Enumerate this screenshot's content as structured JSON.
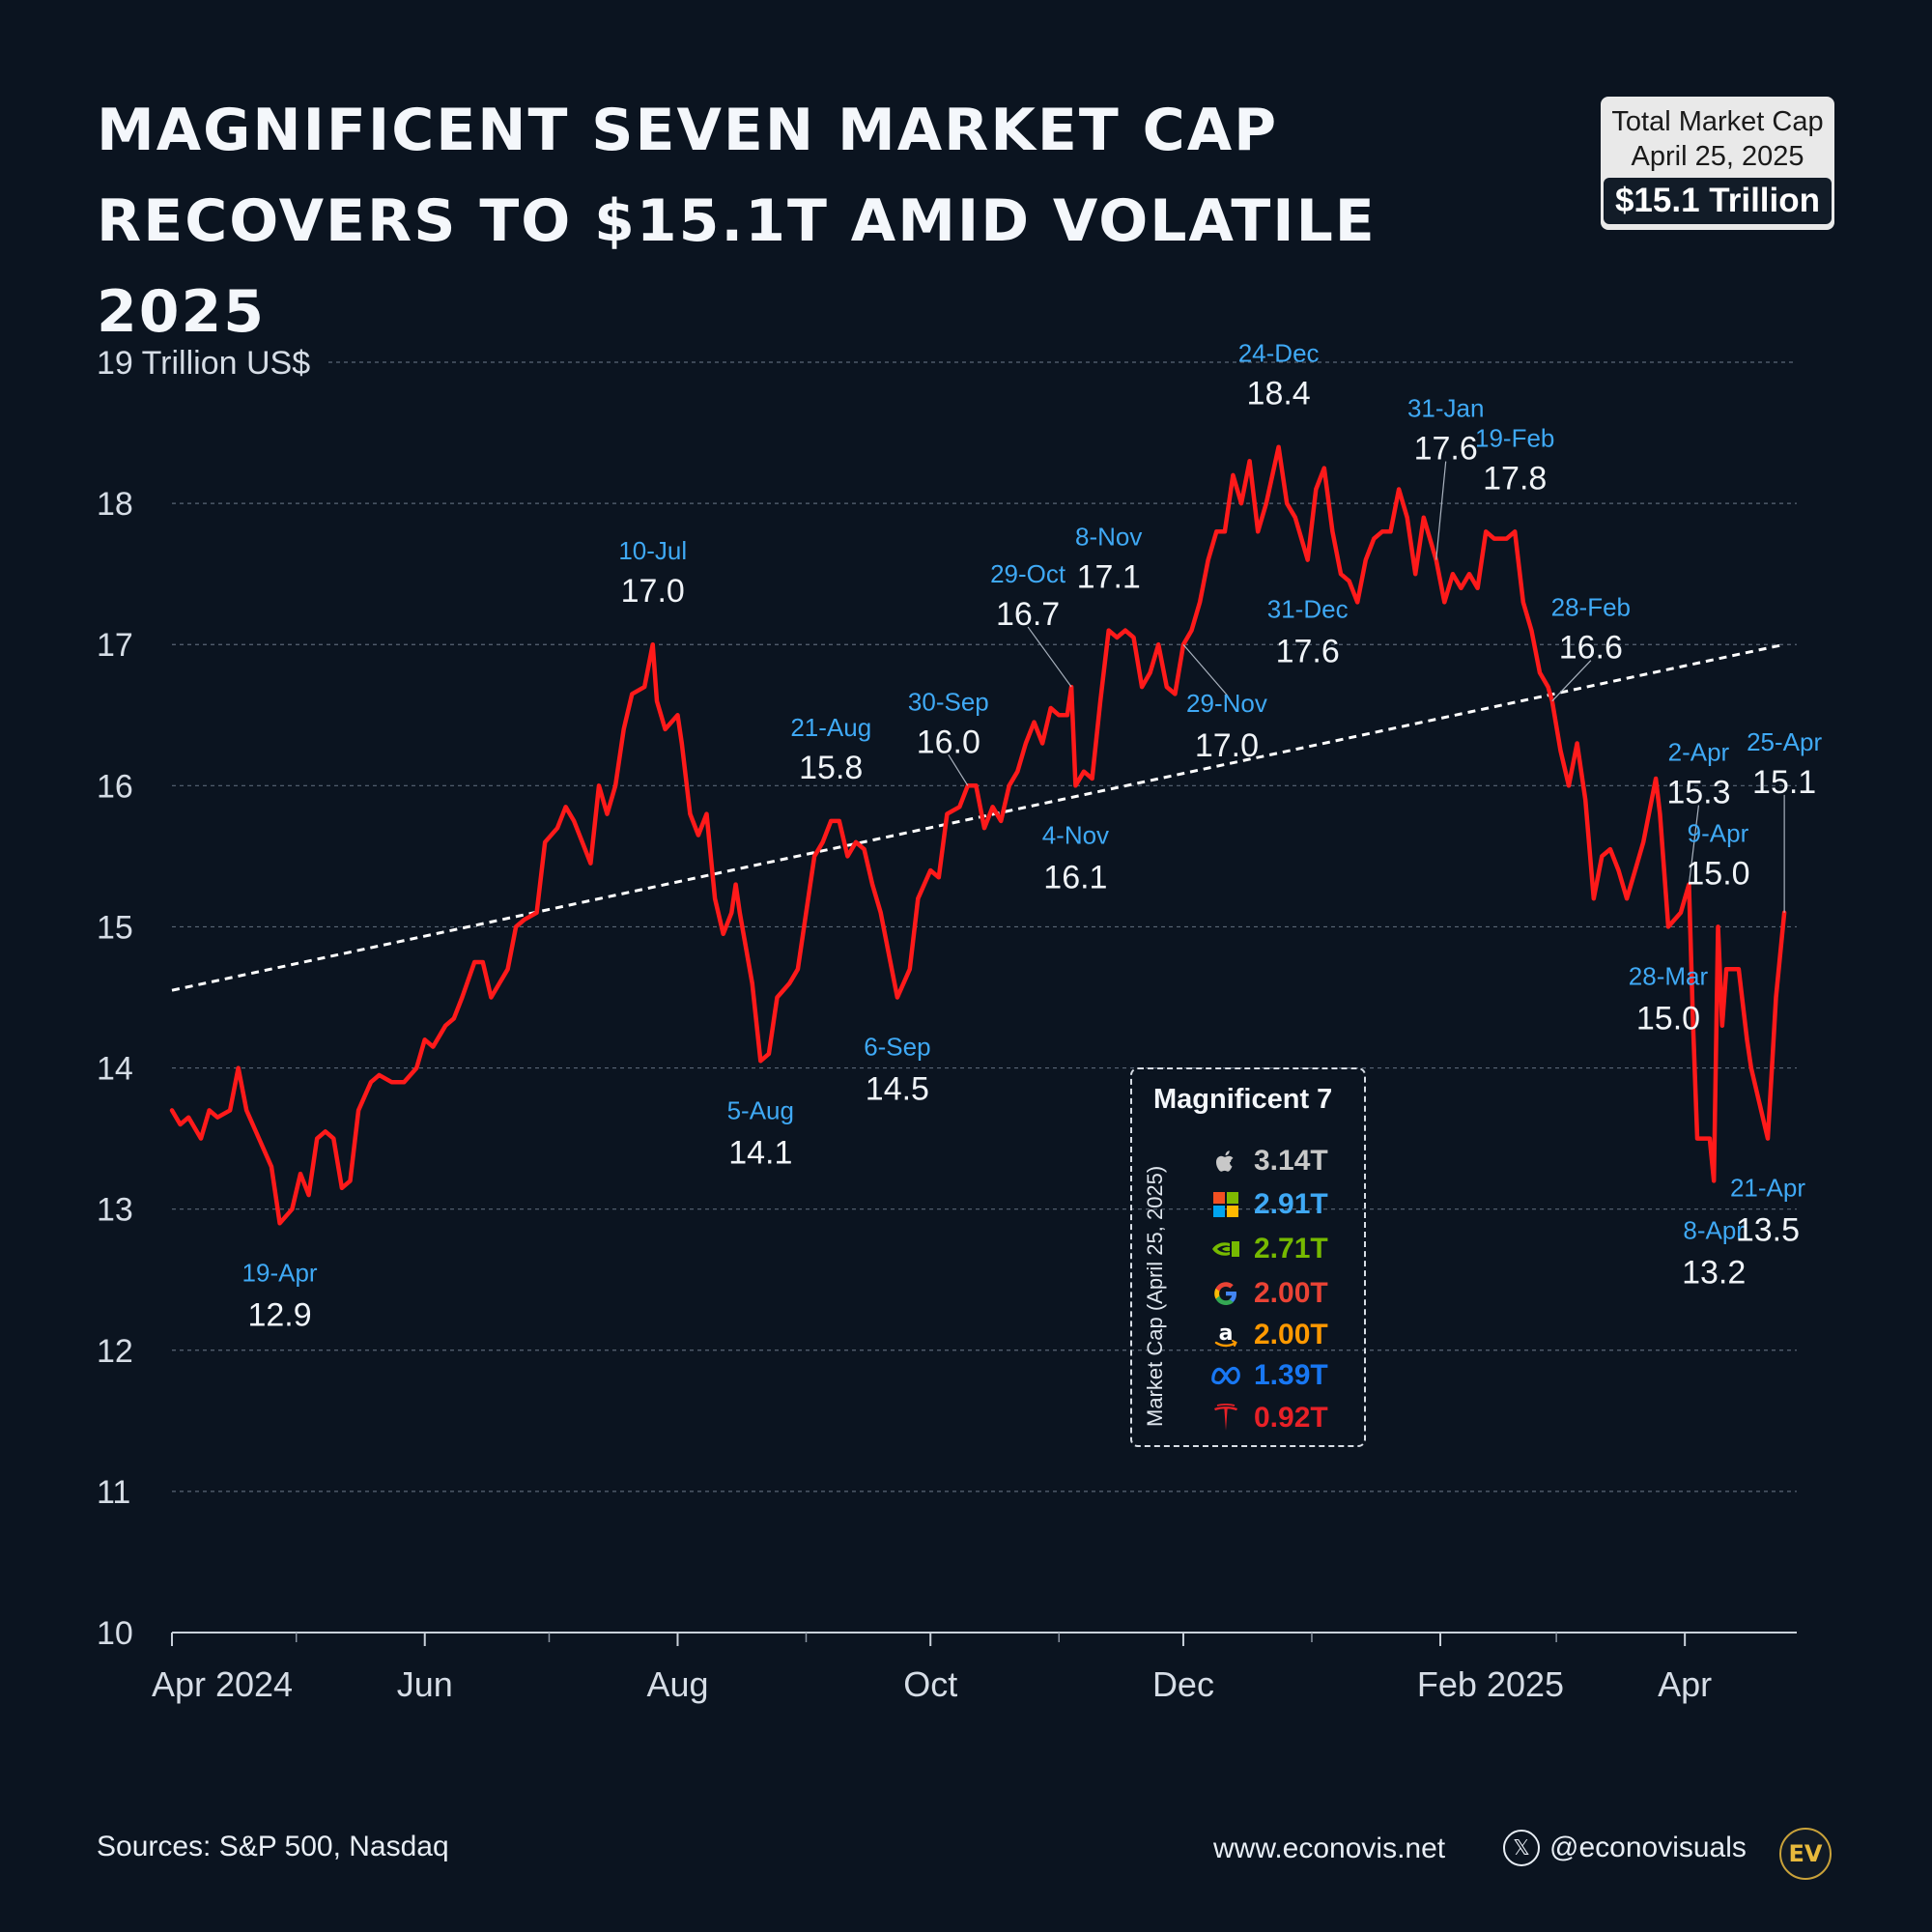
{
  "title": {
    "line1": "MAGNIFICENT SEVEN MARKET CAP",
    "line2": "RECOVERS TO $15.1T AMID VOLATILE 2025"
  },
  "badge": {
    "line1": "Total Market Cap",
    "line2": "April 25, 2025",
    "value": "$15.1 Trillion"
  },
  "colors": {
    "background": "#0b1420",
    "line": "#ff1a1a",
    "trend": "#ffffff",
    "date_label": "#3fa9f5",
    "value_label": "#f0f4f8",
    "grid": "#5a6676"
  },
  "chart_data": {
    "type": "line",
    "title": "MAGNIFICENT SEVEN MARKET CAP RECOVERS TO $15.1T AMID VOLATILE 2025",
    "ylabel": "Trillion US$",
    "ylim": [
      10,
      19
    ],
    "yticks": [
      10,
      11,
      12,
      13,
      14,
      15,
      16,
      17,
      18,
      19
    ],
    "xlim": [
      "2024-04-01",
      "2025-04-28"
    ],
    "xtick_labels": [
      {
        "date": "2024-04-01",
        "label": "Apr 2024"
      },
      {
        "date": "2024-06-01",
        "label": "Jun"
      },
      {
        "date": "2024-08-01",
        "label": "Aug"
      },
      {
        "date": "2024-10-01",
        "label": "Oct"
      },
      {
        "date": "2024-12-01",
        "label": "Dec"
      },
      {
        "date": "2025-02-01",
        "label": "Feb 2025"
      },
      {
        "date": "2025-04-01",
        "label": "Apr"
      }
    ],
    "minor_ticks": [
      "2024-05-01",
      "2024-07-01",
      "2024-09-01",
      "2024-11-01",
      "2025-01-01",
      "2025-03-01"
    ],
    "grid": true,
    "series": [
      {
        "values": [
          [
            "2024-04-01",
            13.7
          ],
          [
            "2024-04-03",
            13.6
          ],
          [
            "2024-04-05",
            13.65
          ],
          [
            "2024-04-08",
            13.5
          ],
          [
            "2024-04-10",
            13.7
          ],
          [
            "2024-04-12",
            13.65
          ],
          [
            "2024-04-15",
            13.7
          ],
          [
            "2024-04-17",
            14.0
          ],
          [
            "2024-04-19",
            13.7
          ],
          [
            "2024-04-22",
            13.5
          ],
          [
            "2024-04-25",
            13.3
          ],
          [
            "2024-04-27",
            12.9
          ],
          [
            "2024-04-30",
            13.0
          ],
          [
            "2024-05-02",
            13.25
          ],
          [
            "2024-05-04",
            13.1
          ],
          [
            "2024-05-06",
            13.5
          ],
          [
            "2024-05-08",
            13.55
          ],
          [
            "2024-05-10",
            13.5
          ],
          [
            "2024-05-12",
            13.15
          ],
          [
            "2024-05-14",
            13.2
          ],
          [
            "2024-05-16",
            13.7
          ],
          [
            "2024-05-19",
            13.9
          ],
          [
            "2024-05-21",
            13.95
          ],
          [
            "2024-05-24",
            13.9
          ],
          [
            "2024-05-27",
            13.9
          ],
          [
            "2024-05-30",
            14.0
          ],
          [
            "2024-06-01",
            14.2
          ],
          [
            "2024-06-03",
            14.15
          ],
          [
            "2024-06-06",
            14.3
          ],
          [
            "2024-06-08",
            14.35
          ],
          [
            "2024-06-10",
            14.5
          ],
          [
            "2024-06-13",
            14.75
          ],
          [
            "2024-06-15",
            14.75
          ],
          [
            "2024-06-17",
            14.5
          ],
          [
            "2024-06-19",
            14.6
          ],
          [
            "2024-06-21",
            14.7
          ],
          [
            "2024-06-23",
            15.0
          ],
          [
            "2024-06-25",
            15.05
          ],
          [
            "2024-06-28",
            15.1
          ],
          [
            "2024-06-30",
            15.6
          ],
          [
            "2024-07-03",
            15.7
          ],
          [
            "2024-07-05",
            15.85
          ],
          [
            "2024-07-07",
            15.75
          ],
          [
            "2024-07-09",
            15.6
          ],
          [
            "2024-07-11",
            15.45
          ],
          [
            "2024-07-13",
            16.0
          ],
          [
            "2024-07-15",
            15.8
          ],
          [
            "2024-07-17",
            16.0
          ],
          [
            "2024-07-19",
            16.4
          ],
          [
            "2024-07-21",
            16.65
          ],
          [
            "2024-07-24",
            16.7
          ],
          [
            "2024-07-26",
            17.0
          ],
          [
            "2024-07-27",
            16.6
          ],
          [
            "2024-07-29",
            16.4
          ],
          [
            "2024-08-01",
            16.5
          ],
          [
            "2024-08-02",
            16.3
          ],
          [
            "2024-08-04",
            15.8
          ],
          [
            "2024-08-06",
            15.65
          ],
          [
            "2024-08-08",
            15.8
          ],
          [
            "2024-08-10",
            15.2
          ],
          [
            "2024-08-12",
            14.95
          ],
          [
            "2024-08-14",
            15.1
          ],
          [
            "2024-08-15",
            15.3
          ],
          [
            "2024-08-16",
            15.1
          ],
          [
            "2024-08-19",
            14.6
          ],
          [
            "2024-08-21",
            14.05
          ],
          [
            "2024-08-23",
            14.1
          ],
          [
            "2024-08-25",
            14.5
          ],
          [
            "2024-08-28",
            14.6
          ],
          [
            "2024-08-30",
            14.7
          ],
          [
            "2024-09-01",
            15.1
          ],
          [
            "2024-09-03",
            15.5
          ],
          [
            "2024-09-05",
            15.6
          ],
          [
            "2024-09-07",
            15.75
          ],
          [
            "2024-09-09",
            15.75
          ],
          [
            "2024-09-11",
            15.5
          ],
          [
            "2024-09-13",
            15.6
          ],
          [
            "2024-09-15",
            15.55
          ],
          [
            "2024-09-17",
            15.3
          ],
          [
            "2024-09-19",
            15.1
          ],
          [
            "2024-09-21",
            14.8
          ],
          [
            "2024-09-23",
            14.5
          ],
          [
            "2024-09-26",
            14.7
          ],
          [
            "2024-09-28",
            15.2
          ],
          [
            "2024-10-01",
            15.4
          ],
          [
            "2024-10-03",
            15.35
          ],
          [
            "2024-10-05",
            15.8
          ],
          [
            "2024-10-08",
            15.85
          ],
          [
            "2024-10-10",
            16.0
          ],
          [
            "2024-10-12",
            16.0
          ],
          [
            "2024-10-14",
            15.7
          ],
          [
            "2024-10-16",
            15.85
          ],
          [
            "2024-10-18",
            15.75
          ],
          [
            "2024-10-20",
            16.0
          ],
          [
            "2024-10-22",
            16.1
          ],
          [
            "2024-10-24",
            16.3
          ],
          [
            "2024-10-26",
            16.45
          ],
          [
            "2024-10-28",
            16.3
          ],
          [
            "2024-10-30",
            16.55
          ],
          [
            "2024-11-01",
            16.5
          ],
          [
            "2024-11-03",
            16.5
          ],
          [
            "2024-11-04",
            16.7
          ],
          [
            "2024-11-05",
            16.0
          ],
          [
            "2024-11-07",
            16.1
          ],
          [
            "2024-11-09",
            16.05
          ],
          [
            "2024-11-11",
            16.6
          ],
          [
            "2024-11-13",
            17.1
          ],
          [
            "2024-11-15",
            17.05
          ],
          [
            "2024-11-17",
            17.1
          ],
          [
            "2024-11-19",
            17.05
          ],
          [
            "2024-11-21",
            16.7
          ],
          [
            "2024-11-23",
            16.8
          ],
          [
            "2024-11-25",
            17.0
          ],
          [
            "2024-11-27",
            16.7
          ],
          [
            "2024-11-29",
            16.65
          ],
          [
            "2024-12-01",
            17.0
          ],
          [
            "2024-12-03",
            17.1
          ],
          [
            "2024-12-05",
            17.3
          ],
          [
            "2024-12-07",
            17.6
          ],
          [
            "2024-12-09",
            17.8
          ],
          [
            "2024-12-11",
            17.8
          ],
          [
            "2024-12-13",
            18.2
          ],
          [
            "2024-12-15",
            18.0
          ],
          [
            "2024-12-17",
            18.3
          ],
          [
            "2024-12-19",
            17.8
          ],
          [
            "2024-12-21",
            18.0
          ],
          [
            "2024-12-24",
            18.4
          ],
          [
            "2024-12-26",
            18.0
          ],
          [
            "2024-12-28",
            17.9
          ],
          [
            "2024-12-30",
            17.7
          ],
          [
            "2024-12-31",
            17.6
          ],
          [
            "2025-01-02",
            18.1
          ],
          [
            "2025-01-04",
            18.25
          ],
          [
            "2025-01-06",
            17.8
          ],
          [
            "2025-01-08",
            17.5
          ],
          [
            "2025-01-10",
            17.45
          ],
          [
            "2025-01-12",
            17.3
          ],
          [
            "2025-01-14",
            17.6
          ],
          [
            "2025-01-16",
            17.75
          ],
          [
            "2025-01-18",
            17.8
          ],
          [
            "2025-01-20",
            17.8
          ],
          [
            "2025-01-22",
            18.1
          ],
          [
            "2025-01-24",
            17.9
          ],
          [
            "2025-01-26",
            17.5
          ],
          [
            "2025-01-28",
            17.9
          ],
          [
            "2025-01-31",
            17.6
          ],
          [
            "2025-02-02",
            17.3
          ],
          [
            "2025-02-04",
            17.5
          ],
          [
            "2025-02-06",
            17.4
          ],
          [
            "2025-02-08",
            17.5
          ],
          [
            "2025-02-10",
            17.4
          ],
          [
            "2025-02-12",
            17.8
          ],
          [
            "2025-02-14",
            17.75
          ],
          [
            "2025-02-17",
            17.75
          ],
          [
            "2025-02-19",
            17.8
          ],
          [
            "2025-02-21",
            17.3
          ],
          [
            "2025-02-23",
            17.1
          ],
          [
            "2025-02-25",
            16.8
          ],
          [
            "2025-02-27",
            16.7
          ],
          [
            "2025-02-28",
            16.6
          ],
          [
            "2025-03-02",
            16.25
          ],
          [
            "2025-03-04",
            16.0
          ],
          [
            "2025-03-06",
            16.3
          ],
          [
            "2025-03-08",
            15.9
          ],
          [
            "2025-03-10",
            15.2
          ],
          [
            "2025-03-12",
            15.5
          ],
          [
            "2025-03-14",
            15.55
          ],
          [
            "2025-03-16",
            15.4
          ],
          [
            "2025-03-18",
            15.2
          ],
          [
            "2025-03-20",
            15.4
          ],
          [
            "2025-03-22",
            15.6
          ],
          [
            "2025-03-25",
            16.05
          ],
          [
            "2025-03-26",
            15.8
          ],
          [
            "2025-03-28",
            15.0
          ],
          [
            "2025-03-31",
            15.1
          ],
          [
            "2025-04-01",
            15.2
          ],
          [
            "2025-04-02",
            15.3
          ],
          [
            "2025-04-03",
            14.3
          ],
          [
            "2025-04-04",
            13.5
          ],
          [
            "2025-04-07",
            13.5
          ],
          [
            "2025-04-08",
            13.2
          ],
          [
            "2025-04-09",
            15.0
          ],
          [
            "2025-04-10",
            14.3
          ],
          [
            "2025-04-11",
            14.7
          ],
          [
            "2025-04-14",
            14.7
          ],
          [
            "2025-04-16",
            14.2
          ],
          [
            "2025-04-17",
            14.0
          ],
          [
            "2025-04-21",
            13.5
          ],
          [
            "2025-04-22",
            14.0
          ],
          [
            "2025-04-23",
            14.5
          ],
          [
            "2025-04-25",
            15.1
          ]
        ]
      }
    ],
    "trendline": {
      "start": [
        "2024-04-01",
        14.55
      ],
      "end": [
        "2025-04-25",
        17.0
      ]
    },
    "annotations": [
      {
        "date_label": "19-Apr",
        "value": "12.9",
        "x": "2024-04-27",
        "y": 12.9,
        "pos": "below"
      },
      {
        "date_label": "10-Jul",
        "value": "17.0",
        "x": "2024-07-26",
        "y": 17.0,
        "pos": "above"
      },
      {
        "date_label": "5-Aug",
        "value": "14.1",
        "x": "2024-08-21",
        "y": 14.05,
        "pos": "below"
      },
      {
        "date_label": "21-Aug",
        "value": "15.8",
        "x": "2024-09-07",
        "y": 15.75,
        "pos": "above"
      },
      {
        "date_label": "6-Sep",
        "value": "14.5",
        "x": "2024-09-23",
        "y": 14.5,
        "pos": "below"
      },
      {
        "date_label": "30-Sep",
        "value": "16.0",
        "x": "2024-10-10",
        "y": 16.0,
        "pos": "above"
      },
      {
        "date_label": "29-Oct",
        "value": "16.7",
        "x": "2024-11-04",
        "y": 16.7,
        "pos": "above"
      },
      {
        "date_label": "4-Nov",
        "value": "16.1",
        "x": "2024-11-05",
        "y": 16.0,
        "pos": "below"
      },
      {
        "date_label": "8-Nov",
        "value": "17.1",
        "x": "2024-11-13",
        "y": 17.1,
        "pos": "above"
      },
      {
        "date_label": "29-Nov",
        "value": "17.0",
        "x": "2024-12-01",
        "y": 17.0,
        "pos": "below"
      },
      {
        "date_label": "24-Dec",
        "value": "18.4",
        "x": "2024-12-24",
        "y": 18.4,
        "pos": "above"
      },
      {
        "date_label": "31-Dec",
        "value": "17.6",
        "x": "2024-12-31",
        "y": 17.6,
        "pos": "below"
      },
      {
        "date_label": "31-Jan",
        "value": "17.6",
        "x": "2025-01-31",
        "y": 17.6,
        "pos": "above"
      },
      {
        "date_label": "19-Feb",
        "value": "17.8",
        "x": "2025-02-19",
        "y": 17.8,
        "pos": "above"
      },
      {
        "date_label": "28-Feb",
        "value": "16.6",
        "x": "2025-02-28",
        "y": 16.6,
        "pos": "above"
      },
      {
        "date_label": "28-Mar",
        "value": "15.0",
        "x": "2025-03-28",
        "y": 15.0,
        "pos": "below"
      },
      {
        "date_label": "2-Apr",
        "value": "15.3",
        "x": "2025-04-02",
        "y": 15.3,
        "pos": "above"
      },
      {
        "date_label": "8-Apr",
        "value": "13.2",
        "x": "2025-04-08",
        "y": 13.2,
        "pos": "below"
      },
      {
        "date_label": "9-Apr",
        "value": "15.0",
        "x": "2025-04-09",
        "y": 15.0,
        "pos": "above"
      },
      {
        "date_label": "21-Apr",
        "value": "13.5",
        "x": "2025-04-21",
        "y": 13.5,
        "pos": "below"
      },
      {
        "date_label": "25-Apr",
        "value": "15.1",
        "x": "2025-04-25",
        "y": 15.1,
        "pos": "above"
      }
    ]
  },
  "legend": {
    "title": "Magnificent 7",
    "side_label": "Market Cap (April 25, 2025)",
    "items": [
      {
        "icon": "apple-icon",
        "value": "3.14T",
        "color": "#c8c8c8"
      },
      {
        "icon": "microsoft-icon",
        "value": "2.91T",
        "color": "#3fa9f5"
      },
      {
        "icon": "nvidia-icon",
        "value": "2.71T",
        "color": "#76b900"
      },
      {
        "icon": "google-icon",
        "value": "2.00T",
        "color": "#ea4335"
      },
      {
        "icon": "amazon-icon",
        "value": "2.00T",
        "color": "#ff9900"
      },
      {
        "icon": "meta-icon",
        "value": "1.39T",
        "color": "#1877f2"
      },
      {
        "icon": "tesla-icon",
        "value": "0.92T",
        "color": "#e82127"
      }
    ]
  },
  "footer": {
    "sources": "Sources: S&P 500, Nasdaq",
    "website": "www.econovis.net",
    "x_handle": "@econovisuals",
    "logo_text": "EV"
  }
}
